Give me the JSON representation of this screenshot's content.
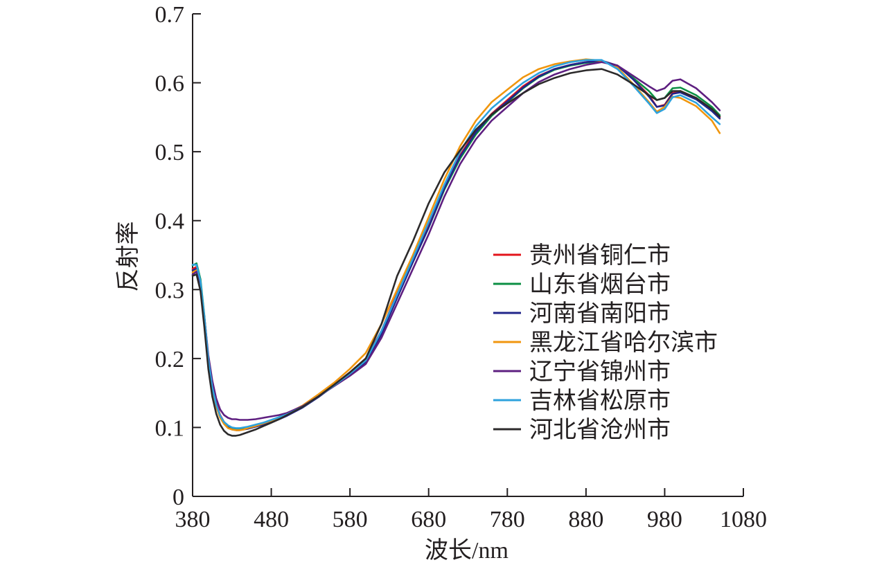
{
  "chart_data": {
    "type": "line",
    "xlabel": "波长/nm",
    "ylabel": "反射率",
    "xlim": [
      380,
      1080
    ],
    "ylim": [
      0,
      0.7
    ],
    "x_ticks": [
      380,
      480,
      580,
      680,
      780,
      880,
      980,
      1080
    ],
    "y_ticks": [
      0,
      0.1,
      0.2,
      0.3,
      0.4,
      0.5,
      0.6,
      0.7
    ],
    "x_tick_labels": [
      "380",
      "480",
      "580",
      "680",
      "780",
      "880",
      "980",
      "1080"
    ],
    "y_tick_labels": [
      "0",
      "0.1",
      "0.2",
      "0.3",
      "0.4",
      "0.5",
      "0.6",
      "0.7"
    ],
    "grid": false,
    "legend_position": "center-right",
    "x": [
      380,
      385,
      390,
      395,
      400,
      405,
      410,
      415,
      420,
      425,
      430,
      435,
      440,
      445,
      450,
      460,
      470,
      480,
      490,
      500,
      520,
      540,
      560,
      580,
      600,
      620,
      640,
      660,
      680,
      700,
      720,
      740,
      760,
      780,
      800,
      820,
      840,
      860,
      880,
      900,
      920,
      940,
      960,
      970,
      980,
      990,
      1000,
      1020,
      1040,
      1050
    ],
    "series": [
      {
        "name": "贵州省铜仁市",
        "color": "#e3141b",
        "values": [
          0.33,
          0.333,
          0.31,
          0.26,
          0.2,
          0.16,
          0.135,
          0.118,
          0.108,
          0.102,
          0.099,
          0.098,
          0.098,
          0.099,
          0.1,
          0.103,
          0.106,
          0.11,
          0.114,
          0.119,
          0.13,
          0.145,
          0.162,
          0.18,
          0.2,
          0.24,
          0.295,
          0.345,
          0.395,
          0.45,
          0.495,
          0.53,
          0.555,
          0.575,
          0.595,
          0.61,
          0.62,
          0.626,
          0.63,
          0.632,
          0.625,
          0.605,
          0.582,
          0.565,
          0.568,
          0.585,
          0.588,
          0.578,
          0.56,
          0.55
        ]
      },
      {
        "name": "山东省烟台市",
        "color": "#0b8f43",
        "values": [
          0.335,
          0.338,
          0.315,
          0.262,
          0.2,
          0.158,
          0.132,
          0.116,
          0.107,
          0.101,
          0.098,
          0.097,
          0.097,
          0.098,
          0.099,
          0.102,
          0.105,
          0.109,
          0.113,
          0.118,
          0.13,
          0.145,
          0.162,
          0.179,
          0.198,
          0.238,
          0.29,
          0.34,
          0.39,
          0.445,
          0.49,
          0.525,
          0.552,
          0.572,
          0.592,
          0.608,
          0.619,
          0.625,
          0.629,
          0.631,
          0.624,
          0.607,
          0.588,
          0.575,
          0.578,
          0.592,
          0.593,
          0.582,
          0.565,
          0.553
        ]
      },
      {
        "name": "河南省南阳市",
        "color": "#21258a",
        "values": [
          0.328,
          0.33,
          0.306,
          0.255,
          0.197,
          0.157,
          0.132,
          0.116,
          0.106,
          0.1,
          0.097,
          0.096,
          0.096,
          0.097,
          0.098,
          0.101,
          0.104,
          0.108,
          0.112,
          0.117,
          0.129,
          0.144,
          0.161,
          0.177,
          0.195,
          0.235,
          0.288,
          0.34,
          0.39,
          0.447,
          0.493,
          0.528,
          0.554,
          0.573,
          0.593,
          0.609,
          0.62,
          0.626,
          0.63,
          0.632,
          0.625,
          0.605,
          0.58,
          0.565,
          0.567,
          0.584,
          0.586,
          0.576,
          0.559,
          0.548
        ]
      },
      {
        "name": "黑龙江省哈尔滨市",
        "color": "#f0960e",
        "values": [
          0.325,
          0.328,
          0.305,
          0.254,
          0.195,
          0.155,
          0.13,
          0.114,
          0.105,
          0.099,
          0.097,
          0.096,
          0.096,
          0.097,
          0.099,
          0.102,
          0.106,
          0.11,
          0.115,
          0.12,
          0.132,
          0.148,
          0.165,
          0.185,
          0.208,
          0.25,
          0.3,
          0.35,
          0.405,
          0.46,
          0.508,
          0.545,
          0.572,
          0.59,
          0.608,
          0.62,
          0.627,
          0.631,
          0.634,
          0.632,
          0.622,
          0.598,
          0.572,
          0.558,
          0.565,
          0.58,
          0.578,
          0.566,
          0.545,
          0.527
        ]
      },
      {
        "name": "辽宁省锦州市",
        "color": "#5e1f80",
        "values": [
          0.322,
          0.326,
          0.306,
          0.26,
          0.205,
          0.168,
          0.142,
          0.126,
          0.118,
          0.114,
          0.112,
          0.112,
          0.111,
          0.111,
          0.111,
          0.112,
          0.114,
          0.116,
          0.118,
          0.121,
          0.131,
          0.145,
          0.16,
          0.175,
          0.192,
          0.23,
          0.28,
          0.33,
          0.38,
          0.435,
          0.482,
          0.518,
          0.545,
          0.565,
          0.585,
          0.601,
          0.612,
          0.62,
          0.626,
          0.63,
          0.625,
          0.61,
          0.595,
          0.588,
          0.592,
          0.603,
          0.605,
          0.592,
          0.572,
          0.56
        ]
      },
      {
        "name": "吉林省松原市",
        "color": "#2ea2dd",
        "values": [
          0.336,
          0.336,
          0.312,
          0.26,
          0.199,
          0.158,
          0.133,
          0.117,
          0.108,
          0.103,
          0.1,
          0.099,
          0.099,
          0.1,
          0.101,
          0.104,
          0.107,
          0.111,
          0.115,
          0.119,
          0.13,
          0.145,
          0.161,
          0.178,
          0.197,
          0.24,
          0.293,
          0.345,
          0.398,
          0.452,
          0.5,
          0.537,
          0.563,
          0.582,
          0.6,
          0.614,
          0.624,
          0.63,
          0.633,
          0.633,
          0.62,
          0.596,
          0.57,
          0.556,
          0.562,
          0.579,
          0.582,
          0.571,
          0.55,
          0.54
        ]
      },
      {
        "name": "河北省沧州市",
        "color": "#2c2a2b",
        "values": [
          0.32,
          0.322,
          0.298,
          0.245,
          0.185,
          0.145,
          0.12,
          0.104,
          0.095,
          0.09,
          0.088,
          0.088,
          0.089,
          0.091,
          0.093,
          0.097,
          0.102,
          0.107,
          0.112,
          0.118,
          0.13,
          0.145,
          0.162,
          0.18,
          0.2,
          0.25,
          0.32,
          0.37,
          0.425,
          0.47,
          0.502,
          0.532,
          0.554,
          0.57,
          0.585,
          0.598,
          0.607,
          0.614,
          0.618,
          0.62,
          0.612,
          0.598,
          0.582,
          0.575,
          0.578,
          0.588,
          0.588,
          0.578,
          0.562,
          0.551
        ]
      }
    ]
  }
}
